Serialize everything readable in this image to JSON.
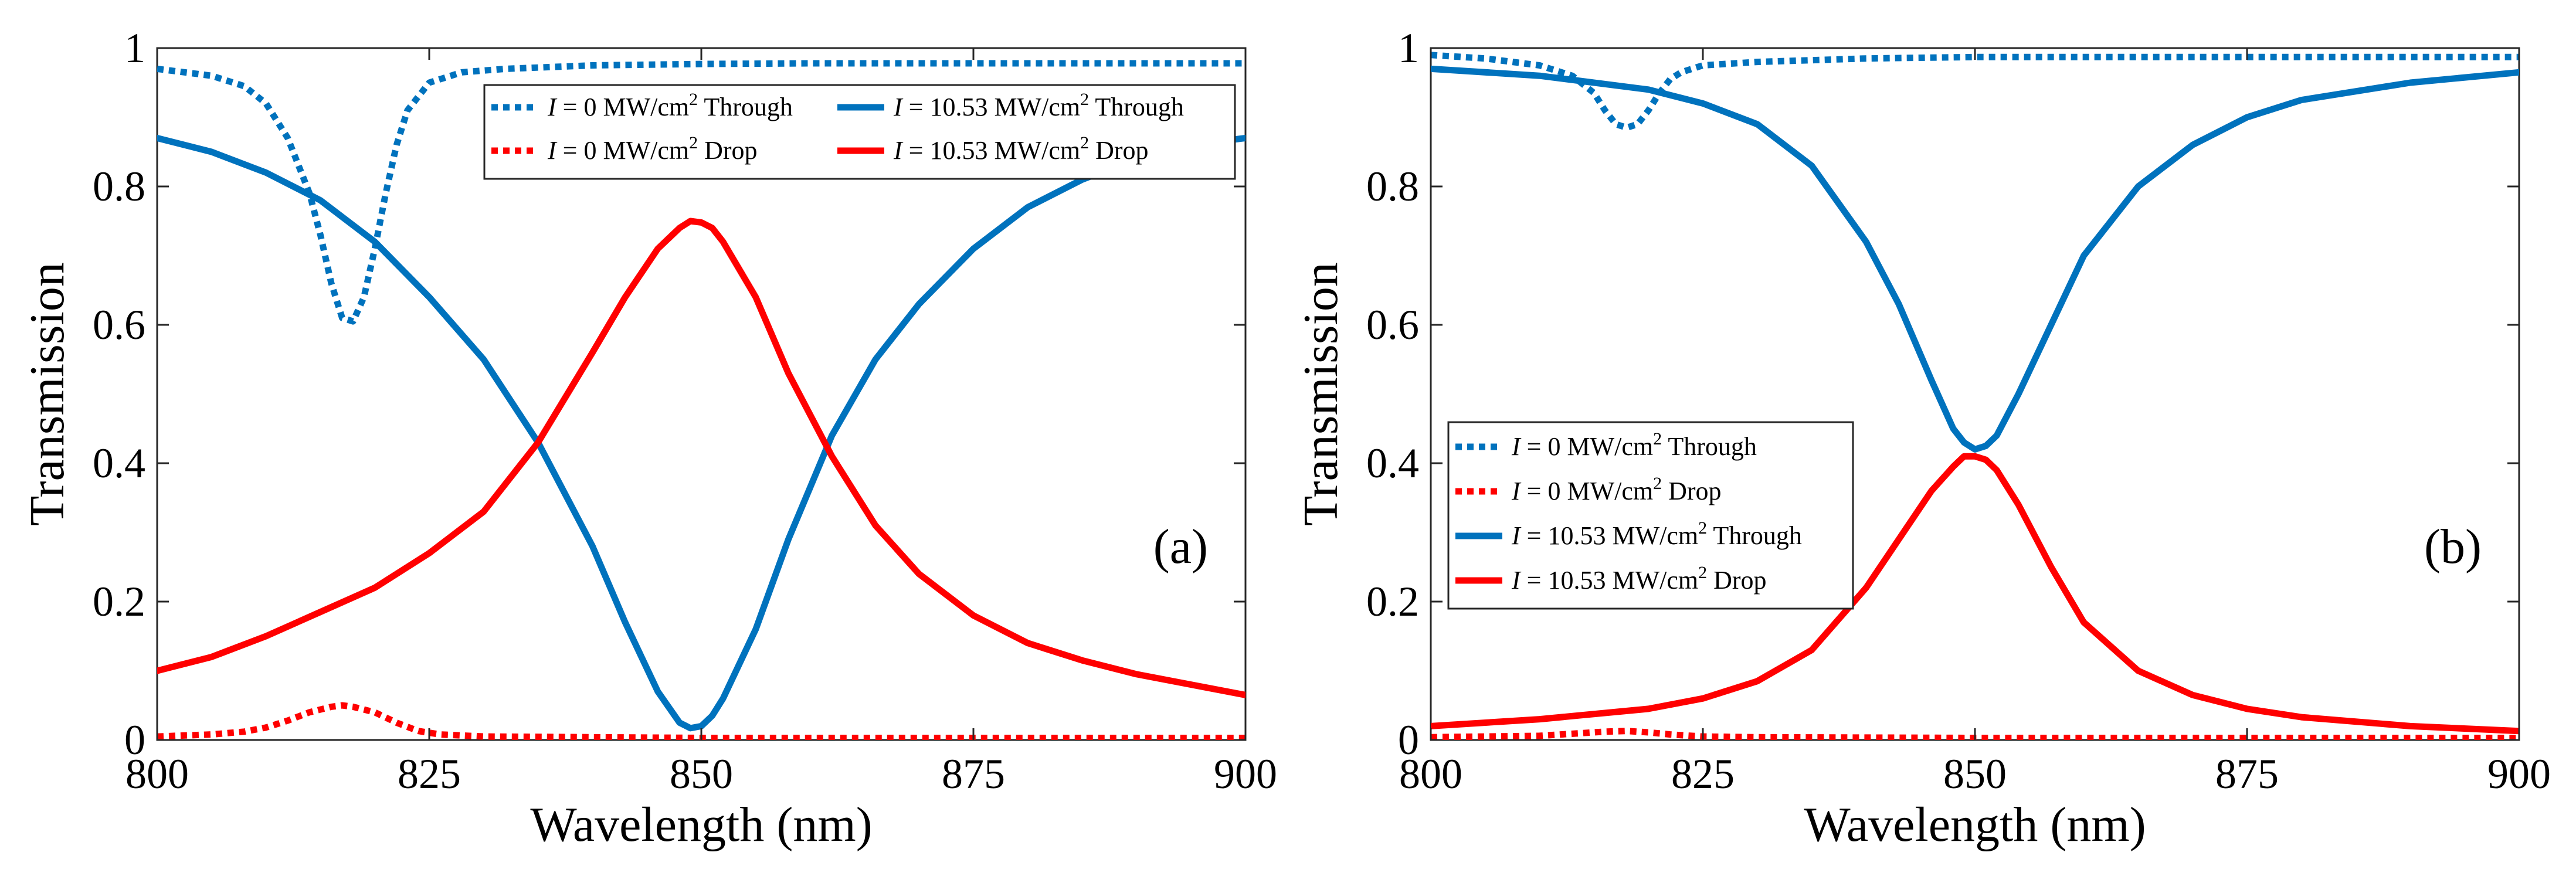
{
  "chart_data": [
    {
      "type": "line",
      "panel": "(a)",
      "xlabel": "Wavelength (nm)",
      "ylabel": "Transmission",
      "xlim": [
        800,
        900
      ],
      "ylim": [
        0,
        1
      ],
      "xticks": [
        800,
        825,
        850,
        875,
        900
      ],
      "yticks": [
        0,
        0.2,
        0.4,
        0.6,
        0.8,
        1
      ],
      "legend_position": "top-right",
      "series": [
        {
          "name": "I = 0 MW/cm2 Through",
          "legend": {
            "var": "I",
            "mid": " = 0 MW/cm",
            "sup": "2",
            "tail": " Through"
          },
          "color": "#0072BD",
          "style": "dotted",
          "x": [
            800,
            805,
            808,
            810,
            812,
            814,
            815,
            816,
            817,
            818,
            819,
            820,
            821,
            822,
            823,
            825,
            828,
            832,
            840,
            850,
            860,
            875,
            890,
            900
          ],
          "y": [
            0.97,
            0.96,
            0.945,
            0.92,
            0.87,
            0.79,
            0.73,
            0.66,
            0.61,
            0.605,
            0.64,
            0.71,
            0.79,
            0.86,
            0.91,
            0.95,
            0.965,
            0.97,
            0.975,
            0.977,
            0.978,
            0.978,
            0.978,
            0.978
          ]
        },
        {
          "name": "I = 0 MW/cm2 Drop",
          "legend": {
            "var": "I",
            "mid": " = 0 MW/cm",
            "sup": "2",
            "tail": " Drop"
          },
          "color": "#FF0000",
          "style": "dotted",
          "x": [
            800,
            805,
            808,
            810,
            812,
            814,
            816,
            817,
            818,
            820,
            822,
            824,
            826,
            830,
            840,
            850,
            875,
            900
          ],
          "y": [
            0.005,
            0.008,
            0.012,
            0.018,
            0.028,
            0.04,
            0.048,
            0.05,
            0.048,
            0.04,
            0.025,
            0.013,
            0.008,
            0.005,
            0.004,
            0.003,
            0.003,
            0.003
          ]
        },
        {
          "name": "I = 10.53 MW/cm2 Through",
          "legend": {
            "var": "I",
            "mid": " = 10.53 MW/cm",
            "sup": "2",
            "tail": " Through"
          },
          "color": "#0072BD",
          "style": "solid",
          "x": [
            800,
            805,
            810,
            815,
            820,
            825,
            830,
            835,
            840,
            843,
            846,
            848,
            849,
            850,
            851,
            852,
            855,
            858,
            862,
            866,
            870,
            875,
            880,
            885,
            890,
            895,
            900
          ],
          "y": [
            0.87,
            0.85,
            0.82,
            0.78,
            0.72,
            0.64,
            0.55,
            0.43,
            0.28,
            0.17,
            0.07,
            0.025,
            0.017,
            0.02,
            0.035,
            0.06,
            0.16,
            0.29,
            0.44,
            0.55,
            0.63,
            0.71,
            0.77,
            0.81,
            0.84,
            0.86,
            0.87
          ]
        },
        {
          "name": "I = 10.53 MW/cm2 Drop",
          "legend": {
            "var": "I",
            "mid": " = 10.53 MW/cm",
            "sup": "2",
            "tail": " Drop"
          },
          "color": "#FF0000",
          "style": "solid",
          "x": [
            800,
            805,
            810,
            815,
            820,
            825,
            830,
            835,
            840,
            843,
            846,
            848,
            849,
            850,
            851,
            852,
            855,
            858,
            862,
            866,
            870,
            875,
            880,
            885,
            890,
            895,
            900
          ],
          "y": [
            0.1,
            0.12,
            0.15,
            0.185,
            0.22,
            0.27,
            0.33,
            0.43,
            0.56,
            0.64,
            0.71,
            0.74,
            0.75,
            0.748,
            0.74,
            0.72,
            0.64,
            0.53,
            0.41,
            0.31,
            0.24,
            0.18,
            0.14,
            0.115,
            0.095,
            0.08,
            0.065
          ]
        }
      ]
    },
    {
      "type": "line",
      "panel": "(b)",
      "xlabel": "Wavelength (nm)",
      "ylabel": "Transmission",
      "xlim": [
        800,
        900
      ],
      "ylim": [
        0,
        1
      ],
      "xticks": [
        800,
        825,
        850,
        875,
        900
      ],
      "yticks": [
        0,
        0.2,
        0.4,
        0.6,
        0.8,
        1
      ],
      "legend_position": "bottom-left",
      "series": [
        {
          "name": "I = 0 MW/cm2 Through",
          "legend": {
            "var": "I",
            "mid": " = 0 MW/cm",
            "sup": "2",
            "tail": " Through"
          },
          "color": "#0072BD",
          "style": "dotted",
          "x": [
            800,
            805,
            810,
            813,
            815,
            816,
            817,
            818,
            819,
            820,
            821,
            822,
            823,
            825,
            830,
            840,
            850,
            860,
            875,
            900
          ],
          "y": [
            0.99,
            0.985,
            0.975,
            0.96,
            0.935,
            0.91,
            0.89,
            0.885,
            0.89,
            0.91,
            0.935,
            0.955,
            0.965,
            0.975,
            0.98,
            0.985,
            0.987,
            0.987,
            0.987,
            0.987
          ]
        },
        {
          "name": "I = 0 MW/cm2 Drop",
          "legend": {
            "var": "I",
            "mid": " = 0 MW/cm",
            "sup": "2",
            "tail": " Drop"
          },
          "color": "#FF0000",
          "style": "dotted",
          "x": [
            800,
            810,
            814,
            816,
            818,
            820,
            822,
            825,
            830,
            850,
            900
          ],
          "y": [
            0.004,
            0.006,
            0.01,
            0.012,
            0.013,
            0.011,
            0.008,
            0.005,
            0.004,
            0.003,
            0.003
          ]
        },
        {
          "name": "I = 10.53 MW/cm2 Through",
          "legend": {
            "var": "I",
            "mid": " = 10.53 MW/cm",
            "sup": "2",
            "tail": " Through"
          },
          "color": "#0072BD",
          "style": "solid",
          "x": [
            800,
            810,
            820,
            825,
            830,
            835,
            840,
            843,
            846,
            848,
            849,
            850,
            851,
            852,
            854,
            857,
            860,
            865,
            870,
            875,
            880,
            890,
            900
          ],
          "y": [
            0.97,
            0.96,
            0.94,
            0.92,
            0.89,
            0.83,
            0.72,
            0.63,
            0.52,
            0.45,
            0.43,
            0.42,
            0.425,
            0.44,
            0.5,
            0.6,
            0.7,
            0.8,
            0.86,
            0.9,
            0.925,
            0.95,
            0.965
          ]
        },
        {
          "name": "I = 10.53 MW/cm2 Drop",
          "legend": {
            "var": "I",
            "mid": " = 10.53 MW/cm",
            "sup": "2",
            "tail": " Drop"
          },
          "color": "#FF0000",
          "style": "solid",
          "x": [
            800,
            810,
            820,
            825,
            830,
            835,
            840,
            843,
            846,
            848,
            849,
            850,
            851,
            852,
            854,
            857,
            860,
            865,
            870,
            875,
            880,
            890,
            900
          ],
          "y": [
            0.02,
            0.03,
            0.045,
            0.06,
            0.085,
            0.13,
            0.22,
            0.29,
            0.36,
            0.395,
            0.41,
            0.41,
            0.405,
            0.39,
            0.34,
            0.25,
            0.17,
            0.1,
            0.065,
            0.045,
            0.033,
            0.02,
            0.013
          ]
        }
      ]
    }
  ]
}
